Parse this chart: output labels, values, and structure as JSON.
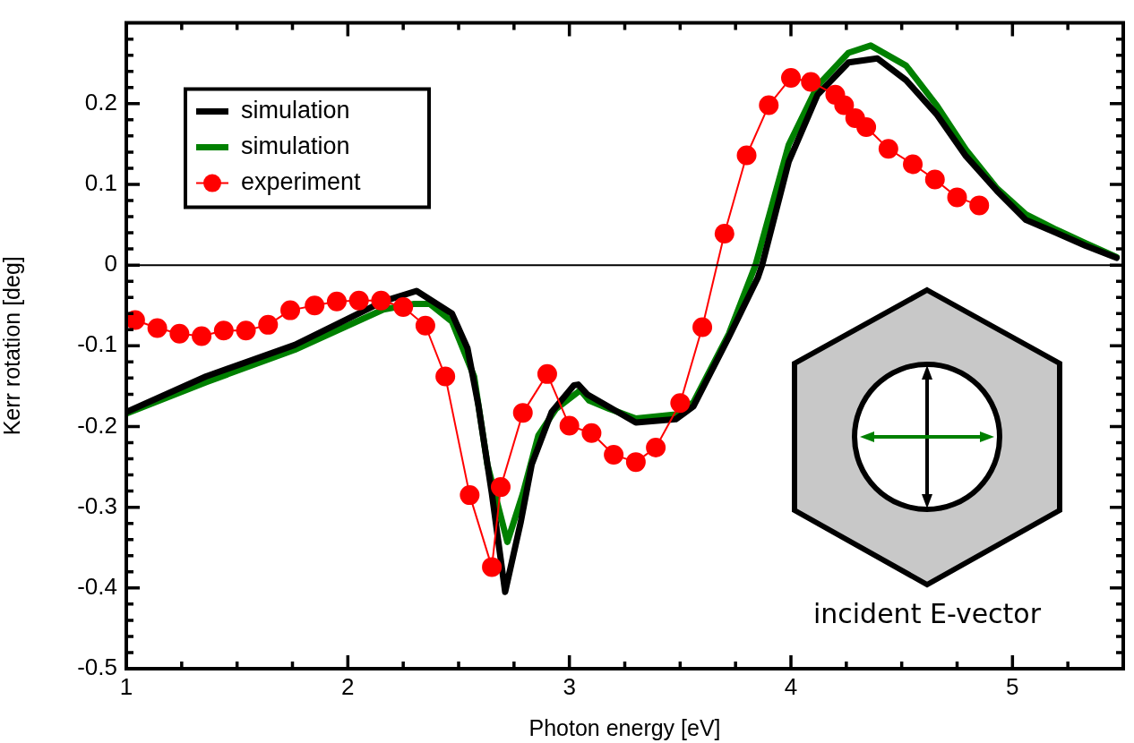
{
  "chart_data": {
    "type": "line",
    "xlabel": "Photon energy [eV]",
    "ylabel": "Kerr rotation [deg]",
    "xlim": [
      1,
      5.5
    ],
    "ylim": [
      -0.5,
      0.3
    ],
    "xticks": [
      1,
      {
        "value": 1.25,
        "label": null
      },
      {
        "value": 1.5,
        "label": null
      },
      {
        "value": 1.75,
        "label": null
      },
      2,
      {
        "value": 2.25,
        "label": null
      },
      {
        "value": 2.5,
        "label": null
      },
      {
        "value": 2.75,
        "label": null
      },
      3,
      {
        "value": 3.25,
        "label": null
      },
      {
        "value": 3.5,
        "label": null
      },
      {
        "value": 3.75,
        "label": null
      },
      4,
      {
        "value": 4.25,
        "label": null
      },
      {
        "value": 4.5,
        "label": null
      },
      {
        "value": 4.75,
        "label": null
      },
      5,
      {
        "value": 5.25,
        "label": null
      }
    ],
    "yticks": [
      -0.5,
      {
        "value": -0.48,
        "label": null
      },
      {
        "value": -0.46,
        "label": null
      },
      {
        "value": -0.44,
        "label": null
      },
      {
        "value": -0.42,
        "label": null
      },
      -0.4,
      {
        "value": -0.38,
        "label": null
      },
      {
        "value": -0.36,
        "label": null
      },
      {
        "value": -0.34,
        "label": null
      },
      {
        "value": -0.32,
        "label": null
      },
      -0.3,
      {
        "value": -0.28,
        "label": null
      },
      {
        "value": -0.26,
        "label": null
      },
      {
        "value": -0.24,
        "label": null
      },
      {
        "value": -0.22,
        "label": null
      },
      -0.2,
      {
        "value": -0.18,
        "label": null
      },
      {
        "value": -0.16,
        "label": null
      },
      {
        "value": -0.14,
        "label": null
      },
      {
        "value": -0.12,
        "label": null
      },
      -0.1,
      {
        "value": -0.08,
        "label": null
      },
      {
        "value": -0.06,
        "label": null
      },
      {
        "value": -0.04,
        "label": null
      },
      {
        "value": -0.02,
        "label": null
      },
      0,
      {
        "value": 0.02,
        "label": null
      },
      {
        "value": 0.04,
        "label": null
      },
      {
        "value": 0.06,
        "label": null
      },
      {
        "value": 0.08,
        "label": null
      },
      0.1,
      {
        "value": 0.12,
        "label": null
      },
      {
        "value": 0.14,
        "label": null
      },
      {
        "value": 0.16,
        "label": null
      },
      {
        "value": 0.18,
        "label": null
      },
      0.2,
      {
        "value": 0.22,
        "label": null
      },
      {
        "value": 0.24,
        "label": null
      },
      {
        "value": 0.26,
        "label": null
      },
      {
        "value": 0.28,
        "label": null
      }
    ],
    "grid": false,
    "legend": "top left",
    "line_style": "solid",
    "ref_lines": [
      {
        "axis": "y",
        "value": 0,
        "color": "#000000"
      }
    ],
    "annotations": [
      "incident E-vector"
    ],
    "series": [
      {
        "name": "simulation",
        "color": "#000000",
        "marker": "none",
        "x": [
          1,
          1.36,
          1.76,
          2.16,
          2.31,
          2.47,
          2.54,
          2.59,
          2.65,
          2.71,
          2.78,
          2.83,
          2.92,
          3.02,
          3.04,
          3.08,
          3.18,
          3.3,
          3.48,
          3.56,
          3.72,
          3.85,
          3.87,
          3.99,
          4.12,
          4.26,
          4.39,
          4.52,
          4.66,
          4.79,
          4.93,
          5.06,
          5.19,
          5.33,
          5.47
        ],
        "values": [
          -0.182,
          -0.138,
          -0.099,
          -0.045,
          -0.032,
          -0.06,
          -0.103,
          -0.175,
          -0.283,
          -0.405,
          -0.319,
          -0.247,
          -0.182,
          -0.149,
          -0.148,
          -0.16,
          -0.176,
          -0.195,
          -0.191,
          -0.175,
          -0.089,
          -0.016,
          0,
          0.128,
          0.211,
          0.251,
          0.256,
          0.229,
          0.186,
          0.135,
          0.092,
          0.056,
          0.041,
          0.024,
          0.009
        ]
      },
      {
        "name": "simulation",
        "color": "#008000",
        "marker": "none",
        "x": [
          1,
          1.36,
          1.76,
          2.16,
          2.3,
          2.37,
          2.47,
          2.57,
          2.63,
          2.72,
          2.79,
          2.86,
          2.94,
          3.04,
          3.05,
          3.09,
          3.18,
          3.3,
          3.48,
          3.56,
          3.72,
          3.84,
          3.99,
          4.12,
          4.26,
          4.36,
          4.52,
          4.66,
          4.79,
          4.93,
          5.06,
          5.19,
          5.33,
          5.47
        ],
        "values": [
          -0.184,
          -0.145,
          -0.105,
          -0.055,
          -0.048,
          -0.048,
          -0.07,
          -0.138,
          -0.247,
          -0.343,
          -0.283,
          -0.211,
          -0.178,
          -0.157,
          -0.155,
          -0.168,
          -0.178,
          -0.19,
          -0.185,
          -0.17,
          -0.085,
          0,
          0.149,
          0.222,
          0.263,
          0.272,
          0.247,
          0.197,
          0.143,
          0.095,
          0.063,
          0.045,
          0.027,
          0.01
        ]
      },
      {
        "name": "experiment",
        "color": "#ff0000",
        "marker": "circle",
        "x": [
          1.04,
          1.14,
          1.24,
          1.34,
          1.44,
          1.54,
          1.64,
          1.74,
          1.85,
          1.95,
          2.05,
          2.15,
          2.25,
          2.35,
          2.44,
          2.55,
          2.65,
          2.69,
          2.79,
          2.9,
          3,
          3.1,
          3.2,
          3.3,
          3.39,
          3.5,
          3.6,
          3.7,
          3.8,
          3.9,
          4,
          4.09,
          4.2,
          4.24,
          4.29,
          4.34,
          4.44,
          4.55,
          4.65,
          4.75,
          4.85
        ],
        "values": [
          -0.068,
          -0.078,
          -0.085,
          -0.088,
          -0.081,
          -0.081,
          -0.074,
          -0.056,
          -0.05,
          -0.045,
          -0.044,
          -0.044,
          -0.052,
          -0.075,
          -0.138,
          -0.285,
          -0.374,
          -0.275,
          -0.183,
          -0.135,
          -0.199,
          -0.208,
          -0.235,
          -0.244,
          -0.226,
          -0.171,
          -0.077,
          0.039,
          0.136,
          0.198,
          0.232,
          0.227,
          0.211,
          0.198,
          0.182,
          0.171,
          0.144,
          0.125,
          0.106,
          0.084,
          0.074
        ]
      }
    ]
  }
}
